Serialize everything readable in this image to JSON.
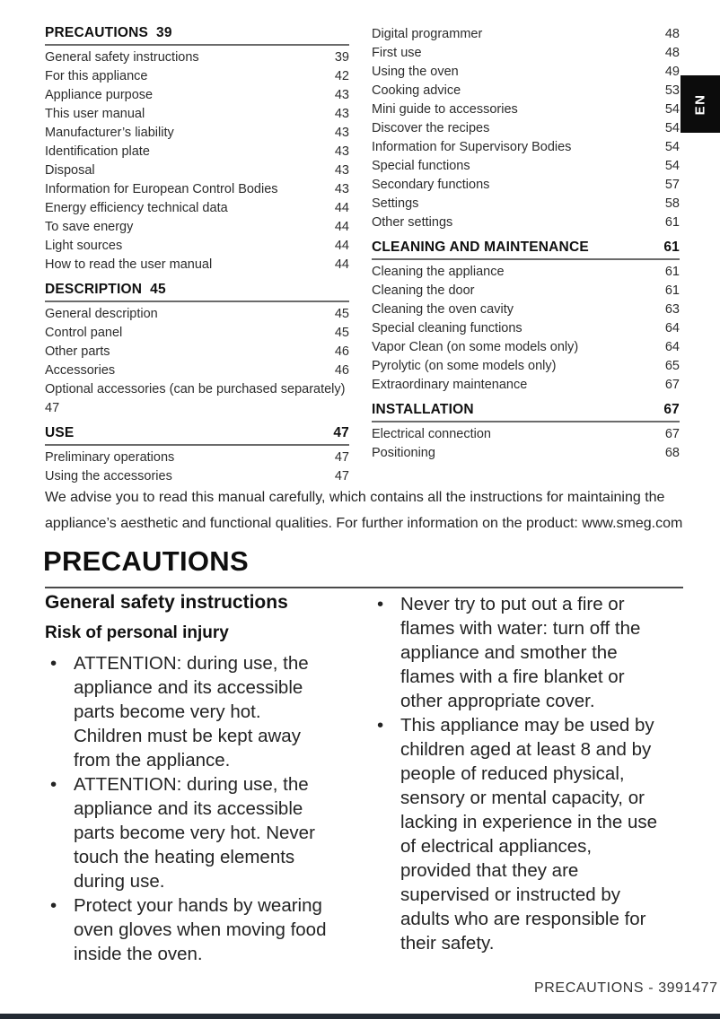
{
  "page": {
    "language_tab": "EN",
    "title": "PRECAUTIONS",
    "advisory": "We advise you to read this manual carefully, which contains all the instructions for maintaining the\nappliance’s aesthetic and functional qualities. For further information on the product: www.smeg.com",
    "footer": "PRECAUTIONS - 3991477"
  },
  "colors": {
    "text": "#222222",
    "rule_gray": "#6b6b6b",
    "title_rule": "#4a4a4a",
    "tab_background": "#0c0c0c",
    "bottom_bar": "#232a33"
  },
  "toc": {
    "left": [
      {
        "heading": {
          "label": "PRECAUTIONS",
          "page": "39",
          "page_align": "inline"
        },
        "items": [
          {
            "label": "General safety instructions",
            "page": "39"
          },
          {
            "label": "For this appliance",
            "page": "42"
          },
          {
            "label": "Appliance purpose",
            "page": "43"
          },
          {
            "label": "This user manual",
            "page": "43"
          },
          {
            "label": "Manufacturer’s liability",
            "page": "43"
          },
          {
            "label": "Identification plate",
            "page": "43"
          },
          {
            "label": "Disposal",
            "page": "43"
          },
          {
            "label": "Information for European Control Bodies",
            "page": "43"
          },
          {
            "label": "Energy efficiency technical data",
            "page": "44"
          },
          {
            "label": "To save energy",
            "page": "44"
          },
          {
            "label": "Light sources",
            "page": "44"
          },
          {
            "label": "How to read the user manual",
            "page": "44"
          }
        ]
      },
      {
        "heading": {
          "label": "DESCRIPTION",
          "page": "45",
          "page_align": "inline"
        },
        "items": [
          {
            "label": "General description",
            "page": "45"
          },
          {
            "label": "Control panel",
            "page": "45"
          },
          {
            "label": "Other parts",
            "page": "46"
          },
          {
            "label": "Accessories",
            "page": "46"
          },
          {
            "label": "Optional accessories (can be purchased separately)",
            "page": "47",
            "wrap": true
          }
        ]
      },
      {
        "heading": {
          "label": "USE",
          "page": "47",
          "page_align": "right"
        },
        "items": [
          {
            "label": "Preliminary operations",
            "page": "47"
          },
          {
            "label": "Using the accessories",
            "page": "47"
          }
        ]
      }
    ],
    "right": [
      {
        "heading": null,
        "items": [
          {
            "label": "Digital programmer",
            "page": "48"
          },
          {
            "label": "First use",
            "page": "48"
          },
          {
            "label": "Using the oven",
            "page": "49"
          },
          {
            "label": "Cooking advice",
            "page": "53"
          },
          {
            "label": "Mini guide to accessories",
            "page": "54"
          },
          {
            "label": "Discover the recipes",
            "page": "54"
          },
          {
            "label": "Information for Supervisory Bodies",
            "page": "54"
          },
          {
            "label": "Special functions",
            "page": "54"
          },
          {
            "label": "Secondary functions",
            "page": "57"
          },
          {
            "label": "Settings",
            "page": "58"
          },
          {
            "label": "Other settings",
            "page": "61"
          }
        ]
      },
      {
        "heading": {
          "label": "CLEANING AND MAINTENANCE",
          "page": "61",
          "page_align": "right"
        },
        "items": [
          {
            "label": "Cleaning the appliance",
            "page": "61"
          },
          {
            "label": "Cleaning the door",
            "page": "61"
          },
          {
            "label": "Cleaning the oven cavity",
            "page": "63"
          },
          {
            "label": "Special cleaning functions",
            "page": "64"
          },
          {
            "label": "Vapor Clean (on some models only)",
            "page": "64"
          },
          {
            "label": "Pyrolytic (on some models only)",
            "page": "65"
          },
          {
            "label": "Extraordinary maintenance",
            "page": "67"
          }
        ]
      },
      {
        "heading": {
          "label": "INSTALLATION",
          "page": "67",
          "page_align": "right"
        },
        "items": [
          {
            "label": "Electrical connection",
            "page": "67"
          },
          {
            "label": "Positioning",
            "page": "68"
          }
        ]
      }
    ]
  },
  "content": {
    "section_title": "General safety instructions",
    "subsection_title": "Risk of personal injury",
    "left_bullets": [
      "ATTENTION: during use, the\nappliance and its accessible\nparts become very hot.\nChildren must be kept away\nfrom the appliance.",
      "ATTENTION: during use, the\nappliance and its accessible\nparts become very hot. Never\ntouch the heating elements\nduring use.",
      "Protect your hands by wearing\noven gloves when moving food\ninside the oven."
    ],
    "right_bullets": [
      "Never try to put out a fire or\nflames with water: turn off the\nappliance and smother the\nflames with a fire blanket or\nother appropriate cover.",
      "This appliance may be used by\nchildren aged at least 8 and by\npeople of reduced physical,\nsensory or mental capacity, or\nlacking in experience in the use\nof electrical appliances,\nprovided that they are\nsupervised or instructed by\nadults who are responsible for\ntheir safety."
    ]
  }
}
